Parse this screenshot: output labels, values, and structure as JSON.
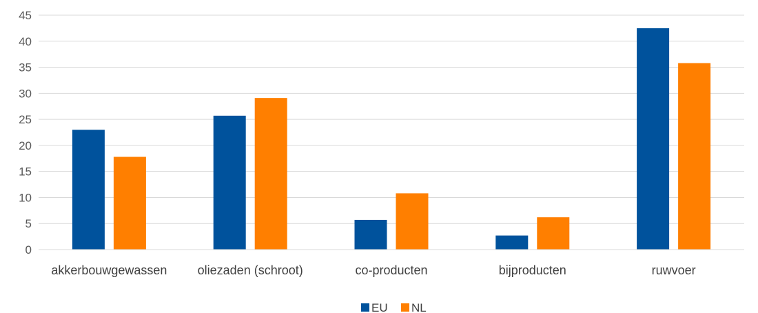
{
  "chart_data": {
    "type": "bar",
    "categories": [
      "akkerbouwgewassen",
      "oliezaden (schroot)",
      "co-producten",
      "bijproducten",
      "ruwvoer"
    ],
    "series": [
      {
        "name": "EU",
        "values": [
          23.0,
          25.7,
          5.7,
          2.7,
          42.5
        ],
        "color": "#00529C"
      },
      {
        "name": "NL",
        "values": [
          17.8,
          29.1,
          10.8,
          6.2,
          35.8
        ],
        "color": "#FF7F00"
      }
    ],
    "title": "",
    "xlabel": "",
    "ylabel": "",
    "ylim": [
      0,
      45
    ],
    "yticks": [
      0,
      5,
      10,
      15,
      20,
      25,
      30,
      35,
      40,
      45
    ],
    "grid": true,
    "legend": "bottom-center"
  }
}
